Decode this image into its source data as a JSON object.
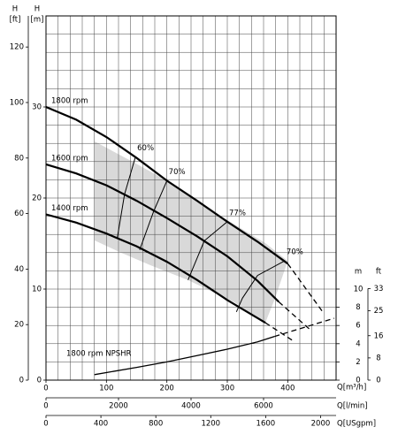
{
  "chart_data": {
    "type": "line",
    "x_label": "Q[m³/h]",
    "y_label": "H",
    "y_unit": "[m]",
    "y_ft_label": "H",
    "y_ft_unit": "[ft]",
    "xlim": [
      0,
      480
    ],
    "xticks": [
      0,
      100,
      200,
      300,
      400
    ],
    "xgrid": [
      0,
      20,
      40,
      60,
      80,
      100,
      120,
      140,
      160,
      180,
      200,
      220,
      240,
      260,
      280,
      300,
      320,
      340,
      360,
      380,
      400,
      420,
      440,
      460,
      480
    ],
    "ylim": [
      0,
      40
    ],
    "yticks": [
      0,
      10,
      20,
      30
    ],
    "ygrid": [
      0,
      2,
      4,
      6,
      8,
      10,
      12,
      14,
      16,
      18,
      20,
      22,
      24,
      26,
      28,
      30,
      32,
      34,
      36,
      38,
      40
    ],
    "y_ft_lim": [
      0,
      131.2
    ],
    "y_ft_ticks": [
      0,
      20,
      40,
      60,
      80,
      100,
      120
    ],
    "npsh_axis": {
      "label_m": "m",
      "label_ft": "ft",
      "ticks_m": [
        0,
        2,
        4,
        6,
        8,
        10
      ],
      "ticks_ft": [
        0,
        8,
        16,
        25,
        33
      ]
    },
    "secondary_x": [
      {
        "label": "Q[l/min]",
        "lim": [
          0,
          8000
        ],
        "ticks": [
          0,
          2000,
          4000,
          6000
        ]
      },
      {
        "label": "Q[USgpm]",
        "lim": [
          0,
          2113
        ],
        "ticks": [
          0,
          400,
          800,
          1200,
          1600,
          2000
        ]
      }
    ],
    "series": [
      {
        "name": "1800 rpm",
        "color": "#000000",
        "x": [
          0,
          50,
          100,
          150,
          200,
          250,
          300,
          350,
          400
        ],
        "values": [
          30,
          28.6,
          26.7,
          24.4,
          21.9,
          19.7,
          17.4,
          15.2,
          12.8
        ],
        "dashed_x": [
          400,
          460
        ],
        "dashed_values": [
          12.8,
          7.3
        ]
      },
      {
        "name": "1600 rpm",
        "color": "#000000",
        "x": [
          0,
          50,
          100,
          150,
          200,
          250,
          300,
          350,
          385
        ],
        "values": [
          23.7,
          22.7,
          21.4,
          19.7,
          17.8,
          15.8,
          13.6,
          10.9,
          8.6
        ],
        "dashed_x": [
          385,
          436
        ],
        "dashed_values": [
          8.6,
          5.6
        ]
      },
      {
        "name": "1400 rpm",
        "color": "#000000",
        "x": [
          0,
          50,
          100,
          150,
          200,
          250,
          300,
          363
        ],
        "values": [
          18.2,
          17.3,
          16.1,
          14.7,
          13.0,
          11.0,
          8.8,
          6.3
        ],
        "dashed_x": [
          363,
          407
        ],
        "dashed_values": [
          6.3,
          4.4
        ]
      },
      {
        "name": "1800 rpm NPSHR",
        "color": "#000000",
        "x": [
          80,
          150,
          200,
          250,
          300,
          350,
          378
        ],
        "values": [
          0.6,
          1.4,
          2.0,
          2.7,
          3.4,
          4.2,
          4.8
        ],
        "dashed_x": [
          378,
          477
        ],
        "dashed_values": [
          4.8,
          6.8
        ]
      }
    ],
    "efficiency": [
      {
        "name": "60%",
        "x": [
          148,
          130,
          118
        ],
        "values": [
          24.5,
          20.4,
          15.6
        ]
      },
      {
        "name": "70%",
        "x": [
          200,
          178,
          155
        ],
        "values": [
          21.9,
          18.5,
          14.3
        ]
      },
      {
        "name": "77%",
        "x": [
          300,
          262,
          235
        ],
        "values": [
          17.4,
          15.3,
          11.0
        ]
      },
      {
        "name": "70%",
        "x": [
          395,
          350,
          325,
          315
        ],
        "values": [
          13.1,
          11.5,
          9.0,
          7.5
        ]
      }
    ]
  }
}
